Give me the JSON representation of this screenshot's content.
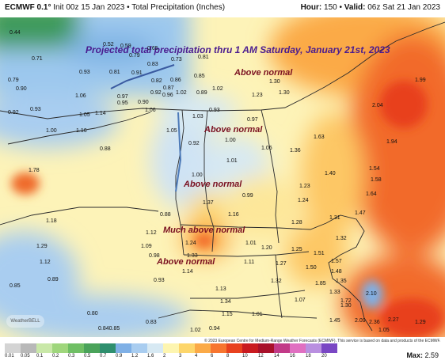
{
  "header": {
    "model": "ECMWF 0.1°",
    "init": "Init 00z 15 Jan 2023",
    "product": "Total Precipitation (Inches)",
    "hour_label": "Hour:",
    "hour": "150",
    "valid_label": "Valid:",
    "valid": "06z Sat 21 Jan 2023"
  },
  "overlay_title": "Projected total precipitation thru 1 AM Saturday, January 21st, 2023",
  "regions": [
    {
      "label": "Above normal"
    },
    {
      "label": "Above normal"
    },
    {
      "label": "Above normal"
    },
    {
      "label": "Much above normal"
    },
    {
      "label": "Above normal"
    }
  ],
  "values": [
    "0.44",
    "0.52",
    "0.59",
    "0.65",
    "0.79",
    "0.73",
    "0.81",
    "0.71",
    "0.93",
    "0.83",
    "0.81",
    "0.79",
    "0.91",
    "0.82",
    "0.86",
    "0.85",
    "0.90",
    "0.87",
    "1.06",
    "0.97",
    "0.92",
    "0.96",
    "0.95",
    "0.90",
    "1.02",
    "0.89",
    "1.02",
    "1.23",
    "1.30",
    "1.30",
    "1.99",
    "0.93",
    "1.14",
    "1.06",
    "0.93",
    "0.92",
    "1.05",
    "1.03",
    "0.97",
    "1.00",
    "1.16",
    "1.05",
    "1.00",
    "1.36",
    "1.63",
    "1.94",
    "2.04",
    "0.92",
    "0.88",
    "1.06",
    "1.01",
    "1.78",
    "1.00",
    "1.40",
    "1.54",
    "1.58",
    "0.99",
    "1.23",
    "1.64",
    "1.37",
    "1.24",
    "1.16",
    "1.47",
    "1.18",
    "0.88",
    "1.28",
    "1.31",
    "1.29",
    "1.12",
    "1.09",
    "1.24",
    "1.01",
    "1.20",
    "1.25",
    "1.32",
    "1.51",
    "1.12",
    "0.98",
    "1.33",
    "1.11",
    "1.27",
    "1.57",
    "0.89",
    "0.93",
    "1.14",
    "1.32",
    "1.50",
    "1.48",
    "0.85",
    "1.85",
    "1.35",
    "1.13",
    "1.33",
    "1.72",
    "2.10",
    "1.34",
    "1.07",
    "1.30",
    "0.80",
    "1.15",
    "1.01",
    "1.45",
    "2.09",
    "2.36",
    "2.27",
    "0.840.85",
    "0.83",
    "1.02",
    "0.94",
    "1.05",
    "1.29"
  ],
  "copyright": "© 2023 European Centre for Medium-Range Weather Forecasts (ECMWF). This service is based on data and products of the ECMWF.",
  "logo": "WeatherBELL",
  "legend": {
    "ticks": [
      "0.01",
      "0.05",
      "0.1",
      "0.2",
      "0.3",
      "0.5",
      "0.7",
      "0.9",
      "1.2",
      "1.6",
      "2",
      "3",
      "4",
      "6",
      "8",
      "10",
      "12",
      "14",
      "16",
      "18",
      "20"
    ],
    "colors": [
      "#d4d4d4",
      "#b8b8b8",
      "#c9e8a8",
      "#9fd67c",
      "#6fbf64",
      "#4aa35a",
      "#2e8f6e",
      "#7fb0e6",
      "#a9cdf0",
      "#d7e9f3",
      "#fdf5b0",
      "#fdd66b",
      "#fbaa47",
      "#f7752f",
      "#e8411f",
      "#c91a20",
      "#a8102a",
      "#c23a88",
      "#e06fc1",
      "#b98fe0",
      "#7a47c4"
    ],
    "max_label": "Max:",
    "max_value": "2.59"
  }
}
